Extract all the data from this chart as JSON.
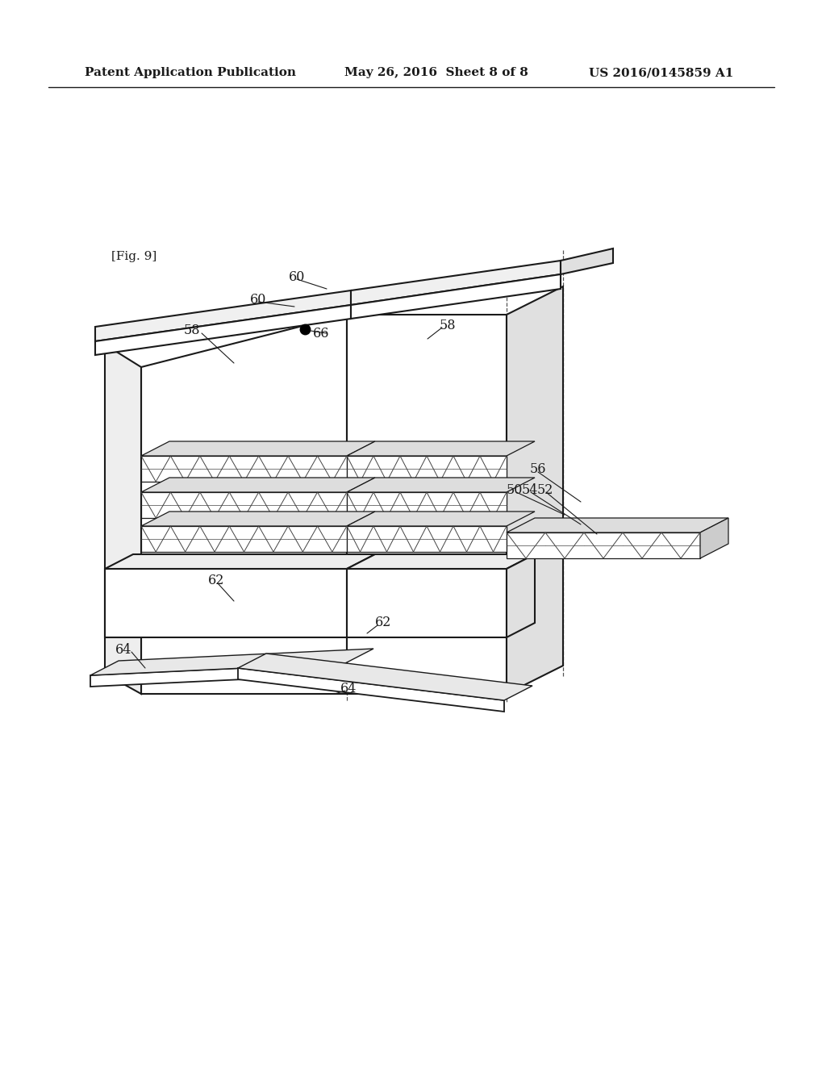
{
  "header_left": "Patent Application Publication",
  "header_mid": "May 26, 2016  Sheet 8 of 8",
  "header_right": "US 2016/0145859 A1",
  "fig_label": "[Fig. 9]",
  "bg_color": "#ffffff",
  "line_color": "#1a1a1a"
}
